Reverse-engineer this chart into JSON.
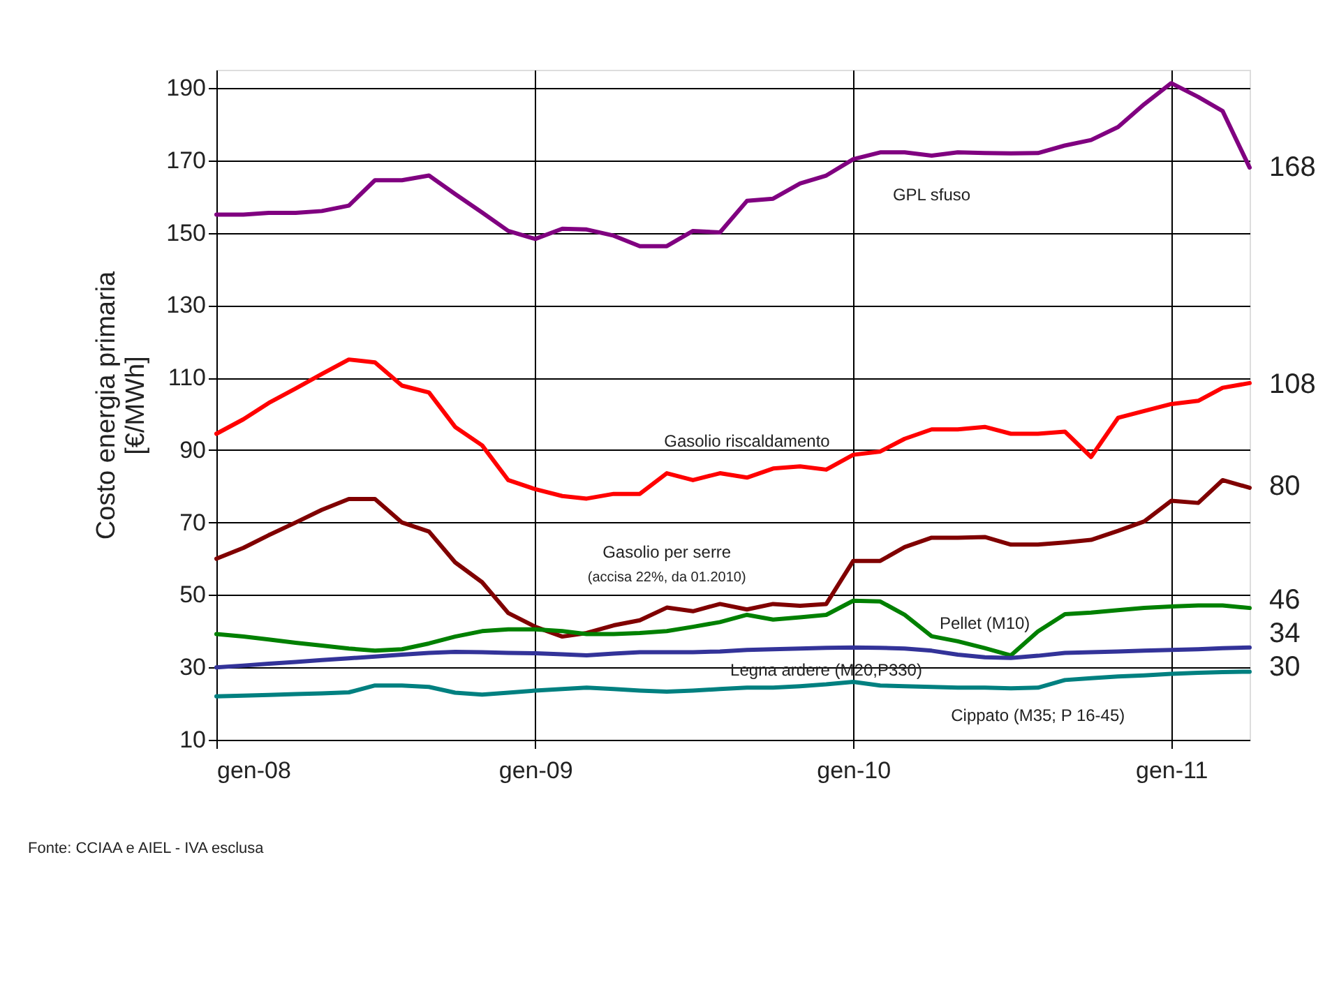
{
  "chart_data": {
    "type": "line",
    "ylabel": "Costo energia primaria [€/MWh]",
    "x": [
      "2008-01",
      "2008-02",
      "2008-03",
      "2008-04",
      "2008-05",
      "2008-06",
      "2008-07",
      "2008-08",
      "2008-09",
      "2008-10",
      "2008-11",
      "2008-12",
      "2009-01",
      "2009-02",
      "2009-03",
      "2009-04",
      "2009-05",
      "2009-06",
      "2009-07",
      "2009-08",
      "2009-09",
      "2009-10",
      "2009-11",
      "2009-12",
      "2010-01",
      "2010-02",
      "2010-03",
      "2010-04",
      "2010-05",
      "2010-06",
      "2010-07",
      "2010-08",
      "2010-09",
      "2010-10",
      "2010-11",
      "2010-12",
      "2011-01",
      "2011-02",
      "2011-03",
      "2011-04"
    ],
    "series": [
      {
        "name": "GPL sfuso",
        "color": "#800080",
        "values": [
          155,
          155,
          155.5,
          155.5,
          156,
          157.5,
          164.5,
          164.5,
          165.8,
          160.7,
          155.6,
          150.5,
          148.3,
          151.1,
          150.9,
          149.2,
          146.3,
          146.3,
          150.5,
          150.1,
          158.8,
          159.4,
          163.6,
          165.8,
          170.3,
          172.2,
          172.2,
          171.3,
          172.2,
          172,
          171.9,
          172,
          174.1,
          175.6,
          179.2,
          185.5,
          191.3,
          187.5,
          183.6,
          168
        ]
      },
      {
        "name": "Gasolio riscaldamento",
        "color": "#ff0000",
        "values": [
          94.5,
          98.5,
          103,
          107,
          111,
          115,
          114.2,
          107.8,
          105.9,
          96.4,
          91.3,
          81.7,
          79.2,
          77.3,
          76.6,
          77.9,
          77.9,
          83.6,
          81.7,
          83.6,
          82.4,
          84.9,
          85.5,
          84.6,
          88.7,
          89.6,
          93.1,
          95.7,
          95.7,
          96.4,
          94.5,
          94.5,
          95.1,
          88.1,
          98.9,
          100.8,
          102.7,
          103.6,
          107.2,
          108.5
        ]
      },
      {
        "name": "Gasolio per serre",
        "color": "#800000",
        "values": [
          60,
          63,
          66.5,
          70,
          73.5,
          76.5,
          76.5,
          70,
          67.5,
          59,
          53.5,
          45,
          41.2,
          38.5,
          39.5,
          41.6,
          43,
          46.5,
          45.5,
          47.5,
          46,
          47.5,
          47,
          47.5,
          59.4,
          59.4,
          63.2,
          65.8,
          65.8,
          66,
          63.9,
          63.9,
          64.5,
          65.2,
          67.7,
          70.3,
          76,
          75.4,
          81.7,
          79.6
        ]
      },
      {
        "name": "Pellet (M10)",
        "color": "#008000",
        "values": [
          39.2,
          38.5,
          37.7,
          36.8,
          36,
          35.2,
          34.6,
          35,
          36.6,
          38.5,
          40,
          40.5,
          40.5,
          40,
          39.2,
          39.2,
          39.5,
          40,
          41.2,
          42.5,
          44.5,
          43.2,
          43.8,
          44.5,
          48.4,
          48.2,
          44.5,
          38.6,
          37.2,
          35.3,
          33.3,
          39.9,
          44.7,
          45.1,
          45.8,
          46.4,
          46.8,
          47.1,
          47.1,
          46.4
        ]
      },
      {
        "name": "Legna ardere (M20,P330)",
        "color": "#333399",
        "values": [
          30,
          30.5,
          31,
          31.5,
          32,
          32.5,
          33,
          33.5,
          34,
          34.3,
          34.2,
          34,
          33.9,
          33.6,
          33.3,
          33.8,
          34.2,
          34.2,
          34.2,
          34.4,
          34.8,
          35,
          35.2,
          35.4,
          35.5,
          35.4,
          35.2,
          34.6,
          33.5,
          32.8,
          32.6,
          33.2,
          34,
          34.2,
          34.4,
          34.6,
          34.8,
          35,
          35.3,
          35.5
        ]
      },
      {
        "name": "Cippato (M35; P 16-45)",
        "color": "#008080",
        "values": [
          22,
          22.2,
          22.4,
          22.6,
          22.8,
          23.1,
          25,
          25,
          24.6,
          23,
          22.5,
          23,
          23.6,
          24,
          24.4,
          24,
          23.6,
          23.3,
          23.6,
          24,
          24.4,
          24.4,
          24.8,
          25.3,
          26,
          25,
          24.8,
          24.6,
          24.4,
          24.4,
          24.2,
          24.4,
          26.5,
          27,
          27.5,
          27.8,
          28.2,
          28.5,
          28.7,
          28.8
        ]
      }
    ],
    "xlim": [
      "2008-01",
      "2011-04"
    ],
    "xticks": [
      {
        "value": "2008-01",
        "label": "gen-08"
      },
      {
        "value": "2009-01",
        "label": "gen-09"
      },
      {
        "value": "2010-01",
        "label": "gen-10"
      },
      {
        "value": "2011-01",
        "label": "gen-11"
      }
    ],
    "ylim": [
      10,
      195
    ],
    "yticks": [
      10,
      30,
      50,
      70,
      90,
      110,
      130,
      150,
      170,
      190
    ],
    "grid": true,
    "legend": false,
    "line_style": "solid",
    "marker": "none",
    "annotations": [
      {
        "text": "168",
        "x": "2011-04",
        "y": 168
      },
      {
        "text": "108",
        "x": "2011-04",
        "y": 108
      },
      {
        "text": "80",
        "x": "2011-04",
        "y": 80
      },
      {
        "text": "46",
        "x": "2011-04",
        "y": 46
      },
      {
        "text": "34",
        "x": "2011-04",
        "y": 34
      },
      {
        "text": "30",
        "x": "2011-04",
        "y": 30
      },
      "(accisa 22%, da 01.2010)",
      "Fonte: CCIAA e AIEL - IVA esclusa"
    ]
  }
}
